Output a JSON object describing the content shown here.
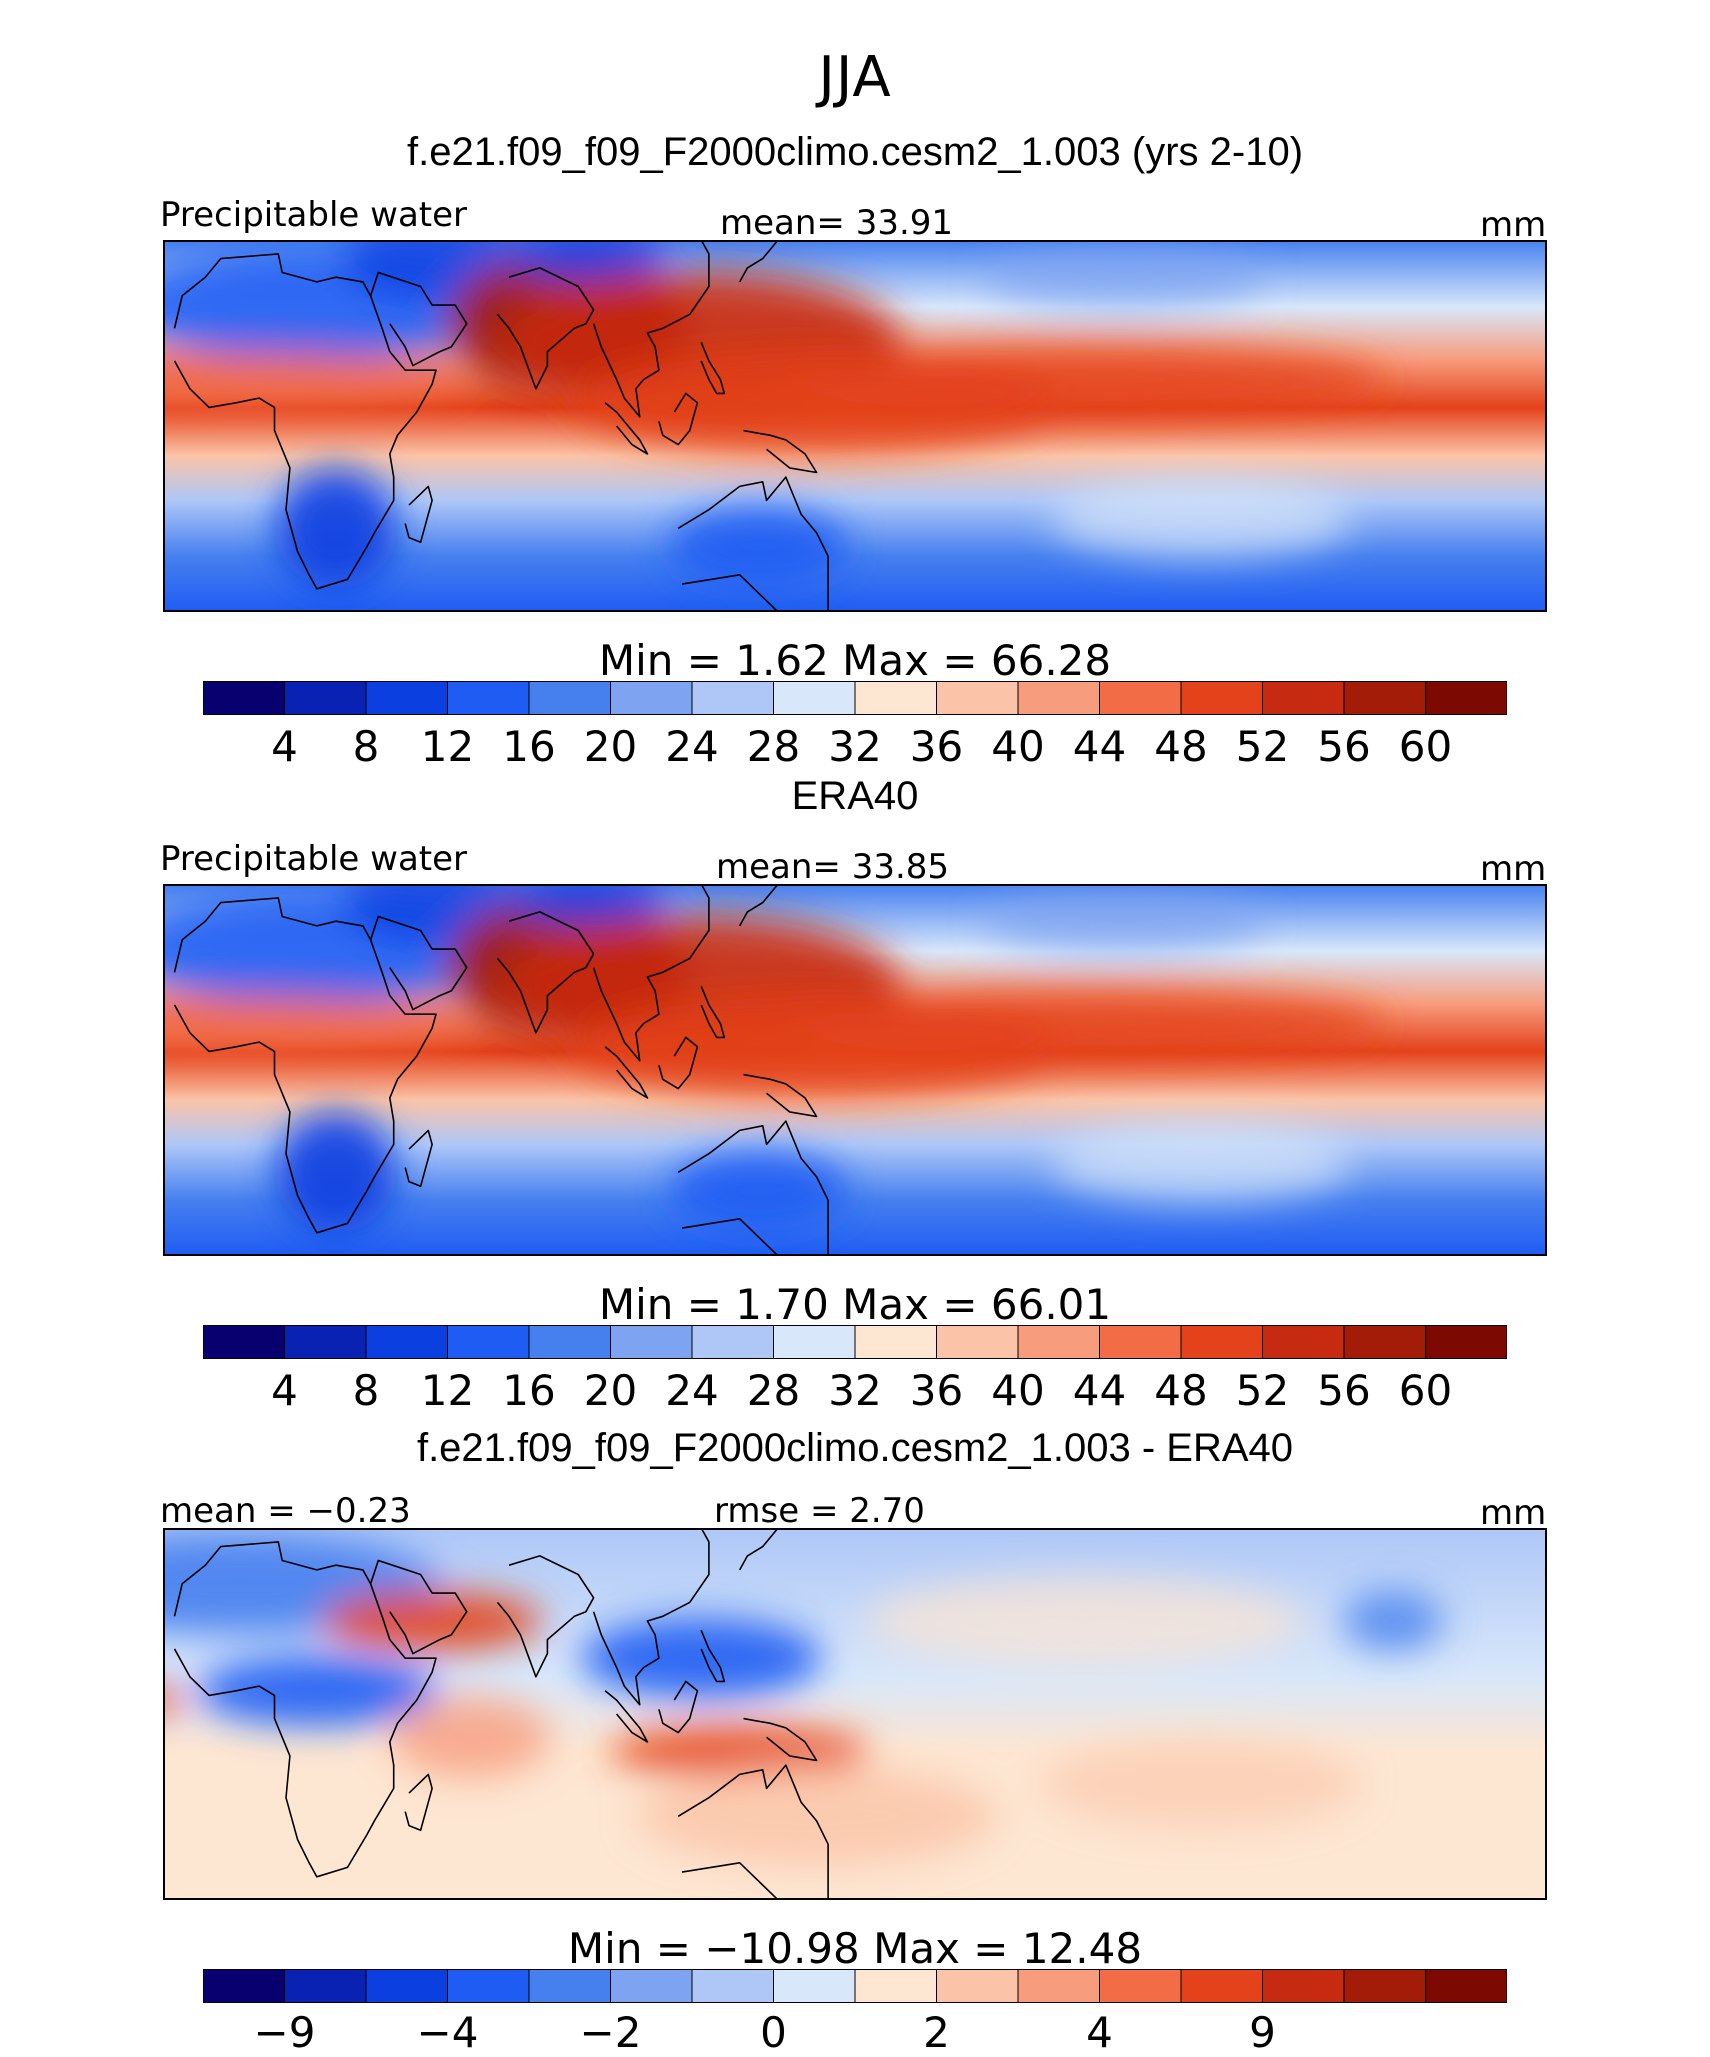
{
  "figure_title": "JJA",
  "panels": [
    {
      "title": "f.e21.f09_f09_F2000climo.cesm2_1.003 (yrs 2-10)",
      "left_label": "Precipitable water",
      "center_label": "mean=   33.91",
      "right_label": "mm",
      "minmax": "Min =     1.62  Max =    66.28",
      "kind": "model",
      "colorbar_ticks": [
        "4",
        "8",
        "12",
        "16",
        "20",
        "24",
        "28",
        "32",
        "36",
        "40",
        "44",
        "48",
        "52",
        "56",
        "60"
      ]
    },
    {
      "title": "ERA40",
      "left_label": "Precipitable water",
      "center_label": "mean=   33.85",
      "right_label": "mm",
      "minmax": "Min =     1.70  Max =    66.01",
      "kind": "obs",
      "colorbar_ticks": [
        "4",
        "8",
        "12",
        "16",
        "20",
        "24",
        "28",
        "32",
        "36",
        "40",
        "44",
        "48",
        "52",
        "56",
        "60"
      ]
    },
    {
      "title": "f.e21.f09_f09_F2000climo.cesm2_1.003 - ERA40",
      "left_label": "mean =  −0.23",
      "center_label": "rmse =    2.70",
      "right_label": "mm",
      "minmax": "Min = −10.98  Max =    12.48",
      "kind": "diff",
      "colorbar_ticks": [
        "−9",
        "",
        "−4",
        "",
        "−2",
        "",
        "0",
        "",
        "2",
        "",
        "4",
        "",
        "9"
      ]
    }
  ],
  "colors": {
    "abs_scale": [
      "#08006e",
      "#0a22b4",
      "#0c3fe0",
      "#1f5cf3",
      "#4680ef",
      "#7ea3f1",
      "#aec7f7",
      "#d8e7fa",
      "#fde6d2",
      "#fbc4a8",
      "#f79d7e",
      "#f26c45",
      "#e4421b",
      "#c62a10",
      "#a31c08",
      "#7d0a02"
    ],
    "diff_scale": [
      "#08006e",
      "#0a22b4",
      "#0c3fe0",
      "#1f5cf3",
      "#4680ef",
      "#7ea3f1",
      "#aec7f7",
      "#d8e7fa",
      "#fde6d2",
      "#fbc4a8",
      "#f79d7e",
      "#f26c45",
      "#e4421b",
      "#c62a10",
      "#a31c08",
      "#7d0a02"
    ]
  }
}
